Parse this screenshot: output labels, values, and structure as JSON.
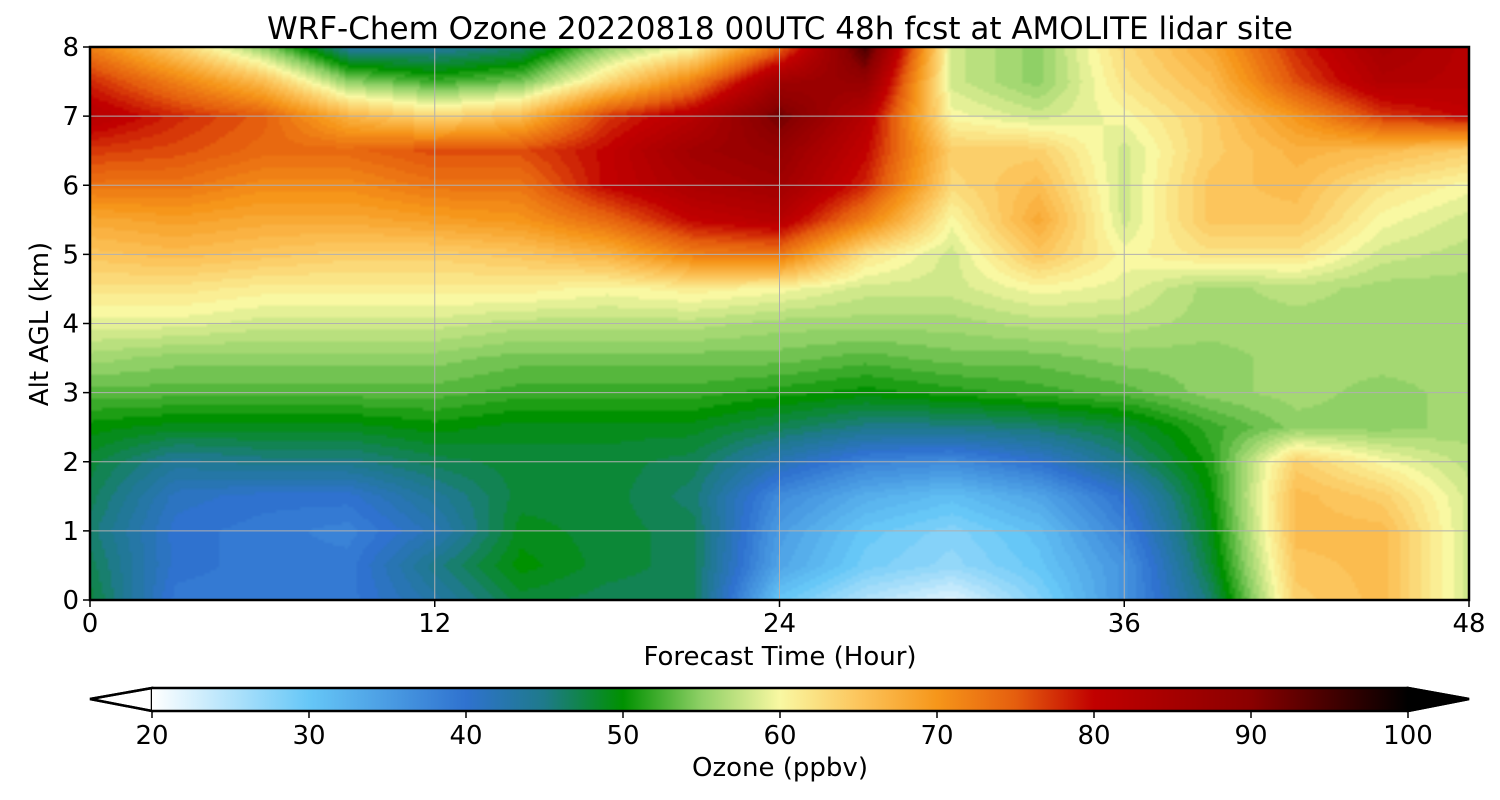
{
  "chart_data": {
    "type": "heatmap",
    "title": "WRF-Chem Ozone  20220818 00UTC 48h fcst at AMOLITE lidar site",
    "xlabel": "Forecast Time (Hour)",
    "ylabel": "Alt AGL (km)",
    "xlim": [
      0,
      48
    ],
    "ylim": [
      0,
      8
    ],
    "xticks": [
      0,
      12,
      24,
      36,
      48
    ],
    "yticks": [
      0,
      1,
      2,
      3,
      4,
      5,
      6,
      7,
      8
    ],
    "grid": true,
    "colorbar": {
      "label": "Ozone  (ppbv)",
      "range": [
        20,
        100
      ],
      "ticks": [
        20,
        30,
        40,
        50,
        60,
        70,
        80,
        90,
        100
      ],
      "extend": "both",
      "stops": [
        {
          "v": 20,
          "c": "#ffffff"
        },
        {
          "v": 30,
          "c": "#66c7f7"
        },
        {
          "v": 40,
          "c": "#2f72cf"
        },
        {
          "v": 45,
          "c": "#1e7a8a"
        },
        {
          "v": 50,
          "c": "#009100"
        },
        {
          "v": 55,
          "c": "#8fd066"
        },
        {
          "v": 60,
          "c": "#f9f8a2"
        },
        {
          "v": 65,
          "c": "#fcc55c"
        },
        {
          "v": 70,
          "c": "#f6961a"
        },
        {
          "v": 75,
          "c": "#e55e0e"
        },
        {
          "v": 80,
          "c": "#c10000"
        },
        {
          "v": 90,
          "c": "#8a0000"
        },
        {
          "v": 100,
          "c": "#000000"
        }
      ]
    },
    "grid_x_hours": [
      0,
      3,
      6,
      9,
      12,
      15,
      18,
      21,
      24,
      27,
      30,
      33,
      36,
      39,
      42,
      45,
      48
    ],
    "grid_y_km": [
      0,
      0.5,
      1,
      1.5,
      2,
      2.5,
      3,
      3.5,
      4,
      4.5,
      5,
      5.5,
      6,
      6.5,
      7,
      7.5,
      8
    ],
    "values": [
      [
        48,
        39,
        39,
        39,
        43,
        48,
        47,
        47,
        30,
        25,
        22,
        28,
        36,
        46,
        64,
        66,
        58
      ],
      [
        47,
        40,
        39,
        39,
        45,
        50,
        48,
        47,
        34,
        29,
        27,
        30,
        36,
        48,
        65,
        66,
        58
      ],
      [
        46,
        40,
        39,
        38,
        42,
        49,
        48,
        47,
        35,
        30,
        28,
        31,
        38,
        49,
        66,
        66,
        58
      ],
      [
        47,
        41,
        40,
        40,
        44,
        48,
        48,
        46,
        37,
        33,
        31,
        34,
        40,
        50,
        66,
        64,
        58
      ],
      [
        48,
        44,
        45,
        45,
        47,
        48,
        48,
        47,
        42,
        38,
        37,
        40,
        45,
        51,
        64,
        60,
        57
      ],
      [
        50,
        49,
        49,
        49,
        50,
        49,
        49,
        49,
        47,
        45,
        45,
        46,
        48,
        52,
        55,
        55,
        56
      ],
      [
        53,
        53,
        53,
        53,
        53,
        52,
        52,
        52,
        51,
        50,
        51,
        52,
        53,
        55,
        56,
        55,
        56
      ],
      [
        56,
        55,
        55,
        55,
        55,
        54,
        54,
        54,
        54,
        53,
        54,
        54,
        55,
        55,
        56,
        56,
        56
      ],
      [
        59,
        59,
        58,
        58,
        58,
        57,
        57,
        57,
        56,
        56,
        56,
        57,
        57,
        56,
        56,
        56,
        56
      ],
      [
        62,
        62,
        61,
        61,
        61,
        61,
        60,
        61,
        60,
        58,
        58,
        60,
        59,
        56,
        57,
        56,
        56
      ],
      [
        65,
        66,
        65,
        64,
        64,
        65,
        67,
        72,
        73,
        62,
        58,
        65,
        60,
        62,
        62,
        58,
        57
      ],
      [
        68,
        69,
        68,
        68,
        69,
        70,
        74,
        80,
        82,
        72,
        60,
        68,
        58,
        65,
        65,
        60,
        58
      ],
      [
        73,
        73,
        71,
        71,
        73,
        73,
        80,
        84,
        86,
        78,
        63,
        66,
        58,
        65,
        66,
        62,
        60
      ],
      [
        77,
        76,
        74,
        74,
        76,
        76,
        80,
        86,
        88,
        80,
        64,
        64,
        58,
        64,
        67,
        66,
        64
      ],
      [
        82,
        78,
        75,
        67,
        63,
        66,
        77,
        82,
        92,
        82,
        60,
        58,
        60,
        64,
        70,
        77,
        80
      ],
      [
        78,
        72,
        66,
        55,
        52,
        54,
        63,
        72,
        86,
        88,
        58,
        55,
        62,
        66,
        76,
        83,
        82
      ],
      [
        72,
        64,
        55,
        44,
        44,
        46,
        55,
        60,
        74,
        95,
        58,
        55,
        63,
        68,
        78,
        85,
        82
      ]
    ]
  }
}
